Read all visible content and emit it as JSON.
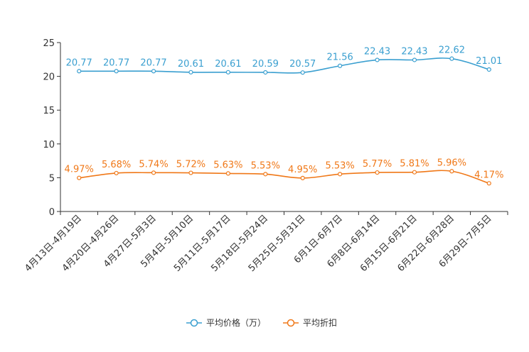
{
  "chart_data": {
    "type": "line",
    "title": "",
    "xlabel": "",
    "ylabel": "",
    "ylim": [
      0,
      25
    ],
    "yticks": [
      0,
      5,
      10,
      15,
      20,
      25
    ],
    "grid": false,
    "legend_position": "bottom-center",
    "categories": [
      "4月13日-4月19日",
      "4月20日-4月26日",
      "4月27日-5月3日",
      "5月4日-5月10日",
      "5月11日-5月17日",
      "5月18日-5月24日",
      "5月25日-5月31日",
      "6月1日-6月7日",
      "6月8日-6月14日",
      "6月15日-6月21日",
      "6月22日-6月28日",
      "6月29日-7月5日"
    ],
    "series": [
      {
        "name": "平均价格（万）",
        "color": "#3a9fd0",
        "values": [
          20.77,
          20.77,
          20.77,
          20.61,
          20.61,
          20.59,
          20.57,
          21.56,
          22.43,
          22.43,
          22.62,
          21.01
        ],
        "labels": [
          "20.77",
          "20.77",
          "20.77",
          "20.61",
          "20.61",
          "20.59",
          "20.57",
          "21.56",
          "22.43",
          "22.43",
          "22.62",
          "21.01"
        ]
      },
      {
        "name": "平均折扣",
        "color": "#f07818",
        "values": [
          4.97,
          5.68,
          5.74,
          5.72,
          5.63,
          5.53,
          4.95,
          5.53,
          5.77,
          5.81,
          5.96,
          4.17
        ],
        "labels": [
          "4.97%",
          "5.68%",
          "5.74%",
          "5.72%",
          "5.63%",
          "5.53%",
          "4.95%",
          "5.53%",
          "5.77%",
          "5.81%",
          "5.96%",
          "4.17%"
        ]
      }
    ]
  }
}
